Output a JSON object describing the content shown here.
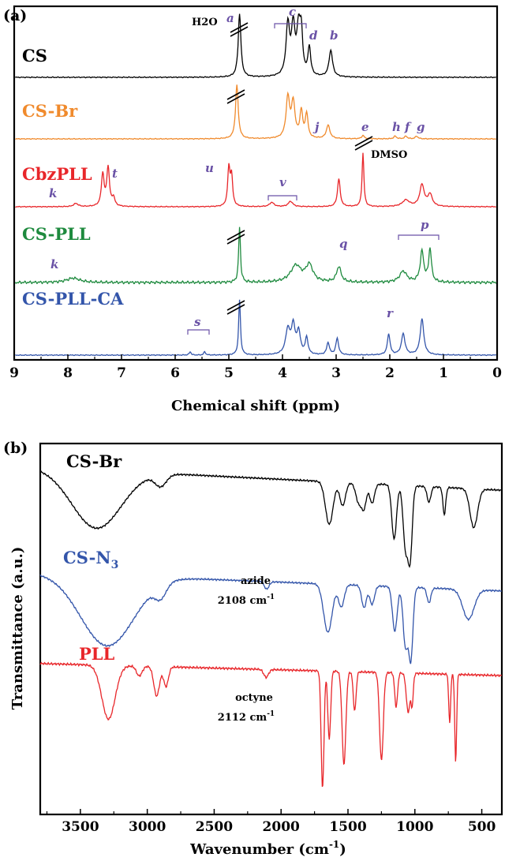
{
  "panels": [
    {
      "label": "(a)",
      "xlabel": "Chemical shift (ppm)",
      "xticks": [
        "9",
        "8",
        "7",
        "6",
        "5",
        "4",
        "3",
        "2",
        "1",
        "0"
      ],
      "traces": [
        {
          "name": "CS",
          "color": "#000000"
        },
        {
          "name": "CS-Br",
          "color": "#f08a2c"
        },
        {
          "name": "CbzPLL",
          "color": "#e8262a"
        },
        {
          "name": "CS-PLL",
          "color": "#1e8a3e"
        },
        {
          "name": "CS-PLL-CA",
          "color": "#3355aa"
        }
      ],
      "peak_labels": [
        "H2O",
        "a",
        "c",
        "d",
        "b",
        "j",
        "e",
        "h",
        "f",
        "g",
        "k",
        "t",
        "u",
        "v",
        "DMSO",
        "q",
        "p",
        "k",
        "s",
        "r"
      ]
    },
    {
      "label": "(b)",
      "xlabel": "Wavenumber (cm",
      "xlabel_sup": "-1",
      "xlabel_end": ")",
      "ylabel": "Transmittance (a.u.)",
      "xticks": [
        "3500",
        "3000",
        "2500",
        "2000",
        "1500",
        "1000",
        "500"
      ],
      "traces": [
        {
          "name": "CS-Br",
          "color": "#000000"
        },
        {
          "name": "CS-N",
          "sub": "3",
          "color": "#3355aa"
        },
        {
          "name": "PLL",
          "color": "#e8262a"
        }
      ],
      "annotations": [
        {
          "line1": "azide",
          "line2": "2108 cm",
          "sup": "-1"
        },
        {
          "line1": "octyne",
          "line2": "2112 cm",
          "sup": "-1"
        }
      ]
    }
  ],
  "chart_data": [
    {
      "type": "line",
      "title": "",
      "xlabel": "Chemical shift (ppm)",
      "ylabel": "",
      "xlim": [
        9,
        0
      ],
      "reversed_x": true,
      "series": [
        {
          "name": "CS",
          "color": "#000000",
          "peaks": [
            {
              "x": 4.8,
              "h": 1.0,
              "w": 0.03,
              "label": "a"
            },
            {
              "x": 3.9,
              "h": 0.8,
              "w": 0.04
            },
            {
              "x": 3.8,
              "h": 0.75,
              "w": 0.04
            },
            {
              "x": 3.7,
              "h": 0.7,
              "w": 0.04
            },
            {
              "x": 3.65,
              "h": 0.6,
              "w": 0.03
            },
            {
              "x": 3.5,
              "h": 0.45,
              "w": 0.03,
              "label": "d"
            },
            {
              "x": 3.1,
              "h": 0.42,
              "w": 0.04,
              "label": "b"
            }
          ]
        },
        {
          "name": "CS-Br",
          "color": "#f08a2c",
          "peaks": [
            {
              "x": 4.85,
              "h": 1.0,
              "w": 0.03
            },
            {
              "x": 3.9,
              "h": 0.75,
              "w": 0.04
            },
            {
              "x": 3.8,
              "h": 0.65,
              "w": 0.04
            },
            {
              "x": 3.65,
              "h": 0.5,
              "w": 0.03
            },
            {
              "x": 3.55,
              "h": 0.45,
              "w": 0.03
            },
            {
              "x": 3.15,
              "h": 0.25,
              "w": 0.04,
              "label": "j"
            },
            {
              "x": 2.5,
              "h": 0.06,
              "w": 0.03,
              "label": "e"
            },
            {
              "x": 1.9,
              "h": 0.05,
              "w": 0.03,
              "label": "h"
            },
            {
              "x": 1.7,
              "h": 0.05,
              "w": 0.03,
              "label": "f"
            },
            {
              "x": 1.5,
              "h": 0.05,
              "w": 0.03,
              "label": "g"
            }
          ]
        },
        {
          "name": "CbzPLL",
          "color": "#e8262a",
          "peaks": [
            {
              "x": 7.35,
              "h": 0.6,
              "w": 0.03
            },
            {
              "x": 7.25,
              "h": 0.72,
              "w": 0.03,
              "label": "t"
            },
            {
              "x": 7.15,
              "h": 0.15,
              "w": 0.03
            },
            {
              "x": 7.85,
              "h": 0.06,
              "w": 0.05,
              "label": "k"
            },
            {
              "x": 5.0,
              "h": 0.7,
              "w": 0.025,
              "label": "u"
            },
            {
              "x": 4.95,
              "h": 0.55,
              "w": 0.025
            },
            {
              "x": 4.2,
              "h": 0.08,
              "w": 0.05
            },
            {
              "x": 3.85,
              "h": 0.1,
              "w": 0.05,
              "label": "v"
            },
            {
              "x": 2.95,
              "h": 0.52,
              "w": 0.03
            },
            {
              "x": 2.5,
              "h": 1.0,
              "w": 0.02,
              "label": "DMSO"
            },
            {
              "x": 1.7,
              "h": 0.12,
              "w": 0.08
            },
            {
              "x": 1.4,
              "h": 0.4,
              "w": 0.05
            },
            {
              "x": 1.25,
              "h": 0.22,
              "w": 0.05
            }
          ]
        },
        {
          "name": "CS-PLL",
          "color": "#1e8a3e",
          "peaks": [
            {
              "x": 7.9,
              "h": 0.08,
              "w": 0.15,
              "label": "k"
            },
            {
              "x": 4.8,
              "h": 1.0,
              "w": 0.02
            },
            {
              "x": 3.75,
              "h": 0.3,
              "w": 0.12
            },
            {
              "x": 3.5,
              "h": 0.3,
              "w": 0.08
            },
            {
              "x": 2.95,
              "h": 0.28,
              "w": 0.05,
              "label": "q"
            },
            {
              "x": 1.75,
              "h": 0.2,
              "w": 0.08
            },
            {
              "x": 1.4,
              "h": 0.55,
              "w": 0.04,
              "label": "p"
            },
            {
              "x": 1.25,
              "h": 0.6,
              "w": 0.03
            }
          ]
        },
        {
          "name": "CS-PLL-CA",
          "color": "#3355aa",
          "peaks": [
            {
              "x": 5.72,
              "h": 0.06,
              "w": 0.02,
              "label": "s"
            },
            {
              "x": 5.45,
              "h": 0.06,
              "w": 0.02
            },
            {
              "x": 4.8,
              "h": 1.0,
              "w": 0.02
            },
            {
              "x": 3.9,
              "h": 0.45,
              "w": 0.05
            },
            {
              "x": 3.8,
              "h": 0.5,
              "w": 0.04
            },
            {
              "x": 3.7,
              "h": 0.4,
              "w": 0.04
            },
            {
              "x": 3.55,
              "h": 0.3,
              "w": 0.03
            },
            {
              "x": 3.15,
              "h": 0.22,
              "w": 0.03
            },
            {
              "x": 2.98,
              "h": 0.3,
              "w": 0.03
            },
            {
              "x": 2.02,
              "h": 0.38,
              "w": 0.03,
              "label": "r"
            },
            {
              "x": 1.75,
              "h": 0.38,
              "w": 0.04
            },
            {
              "x": 1.4,
              "h": 0.65,
              "w": 0.04
            }
          ]
        }
      ]
    },
    {
      "type": "line",
      "title": "",
      "xlabel": "Wavenumber (cm-1)",
      "ylabel": "Transmittance (a.u.)",
      "xlim": [
        3800,
        350
      ],
      "reversed_x": true,
      "series": [
        {
          "name": "CS-Br",
          "color": "#000000",
          "dips": [
            {
              "x": 3380,
              "d": 0.75,
              "w": 260
            },
            {
              "x": 2900,
              "d": 0.15,
              "w": 60
            },
            {
              "x": 1640,
              "d": 0.55,
              "w": 40
            },
            {
              "x": 1540,
              "d": 0.3,
              "w": 30
            },
            {
              "x": 1420,
              "d": 0.25,
              "w": 30
            },
            {
              "x": 1380,
              "d": 0.3,
              "w": 25
            },
            {
              "x": 1320,
              "d": 0.25,
              "w": 25
            },
            {
              "x": 1155,
              "d": 0.7,
              "w": 25
            },
            {
              "x": 1070,
              "d": 0.8,
              "w": 25
            },
            {
              "x": 1035,
              "d": 0.9,
              "w": 22
            },
            {
              "x": 895,
              "d": 0.2,
              "w": 20
            },
            {
              "x": 780,
              "d": 0.35,
              "w": 15
            },
            {
              "x": 560,
              "d": 0.5,
              "w": 40
            }
          ]
        },
        {
          "name": "CS-N3",
          "color": "#3355aa",
          "dips": [
            {
              "x": 3300,
              "d": 0.95,
              "w": 280
            },
            {
              "x": 2900,
              "d": 0.18,
              "w": 60
            },
            {
              "x": 2108,
              "d": 0.1,
              "w": 25
            },
            {
              "x": 1650,
              "d": 0.65,
              "w": 45
            },
            {
              "x": 1550,
              "d": 0.3,
              "w": 30
            },
            {
              "x": 1380,
              "d": 0.3,
              "w": 25
            },
            {
              "x": 1320,
              "d": 0.25,
              "w": 25
            },
            {
              "x": 1150,
              "d": 0.6,
              "w": 25
            },
            {
              "x": 1070,
              "d": 0.8,
              "w": 25
            },
            {
              "x": 1030,
              "d": 0.95,
              "w": 22
            },
            {
              "x": 895,
              "d": 0.2,
              "w": 20
            },
            {
              "x": 600,
              "d": 0.4,
              "w": 60
            }
          ]
        },
        {
          "name": "PLL",
          "color": "#e8262a",
          "dips": [
            {
              "x": 3290,
              "d": 0.55,
              "w": 70
            },
            {
              "x": 3060,
              "d": 0.1,
              "w": 30
            },
            {
              "x": 2930,
              "d": 0.3,
              "w": 30
            },
            {
              "x": 2860,
              "d": 0.2,
              "w": 25
            },
            {
              "x": 2112,
              "d": 0.08,
              "w": 25
            },
            {
              "x": 1690,
              "d": 1.2,
              "w": 15
            },
            {
              "x": 1640,
              "d": 0.7,
              "w": 15
            },
            {
              "x": 1530,
              "d": 0.95,
              "w": 20
            },
            {
              "x": 1450,
              "d": 0.4,
              "w": 15
            },
            {
              "x": 1250,
              "d": 0.9,
              "w": 20
            },
            {
              "x": 1140,
              "d": 0.35,
              "w": 15
            },
            {
              "x": 1050,
              "d": 0.4,
              "w": 20
            },
            {
              "x": 1020,
              "d": 0.3,
              "w": 12
            },
            {
              "x": 740,
              "d": 0.5,
              "w": 10
            },
            {
              "x": 695,
              "d": 0.9,
              "w": 10
            }
          ]
        }
      ]
    }
  ]
}
